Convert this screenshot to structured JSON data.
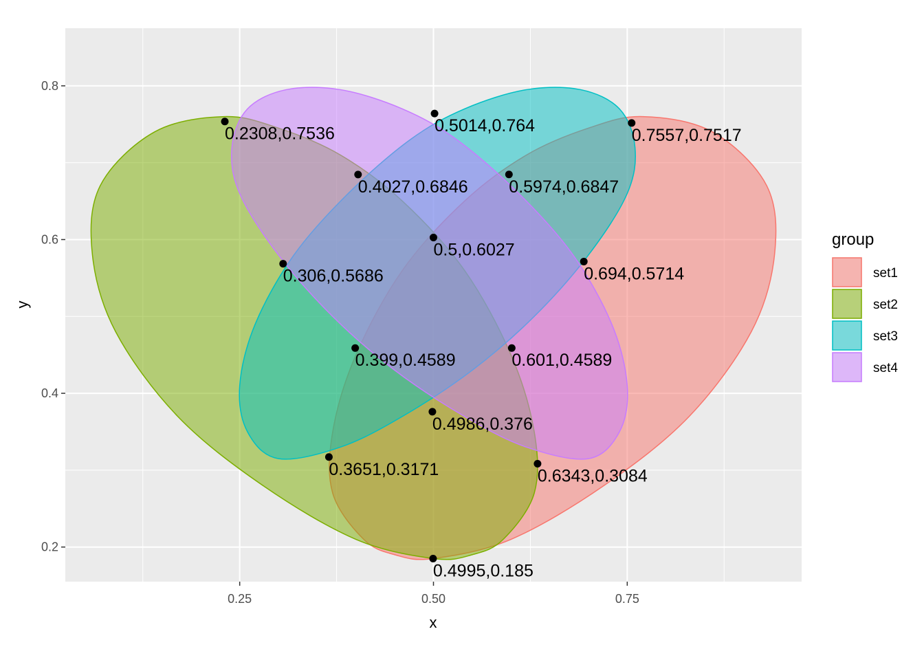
{
  "chart_data": {
    "type": "scatter",
    "title": "",
    "xlabel": "x",
    "ylabel": "y",
    "xlim": [
      0.025,
      0.975
    ],
    "ylim": [
      0.155,
      0.875
    ],
    "x_ticks": [
      0.25,
      0.5,
      0.75
    ],
    "x_tick_labels": [
      "0.25",
      "0.50",
      "0.75"
    ],
    "x_minor_ticks": [
      0.125,
      0.375,
      0.625,
      0.875
    ],
    "y_ticks": [
      0.2,
      0.4,
      0.6,
      0.8
    ],
    "y_tick_labels": [
      "0.2",
      "0.4",
      "0.6",
      "0.8"
    ],
    "y_minor_ticks": [
      0.3,
      0.5,
      0.7
    ],
    "grid": true,
    "panel_background": "#ebebeb",
    "legend": {
      "title": "group",
      "position": "right",
      "entries": [
        {
          "label": "set1",
          "fill": "#F8766D",
          "stroke": "#F8766D"
        },
        {
          "label": "set2",
          "fill": "#7CAE00",
          "stroke": "#7CAE00"
        },
        {
          "label": "set3",
          "fill": "#00BFC4",
          "stroke": "#00BFC4"
        },
        {
          "label": "set4",
          "fill": "#C77CFF",
          "stroke": "#C77CFF"
        }
      ]
    },
    "fill_opacity": 0.5,
    "ellipses": [
      {
        "group": "set1",
        "color": "#F8766D",
        "outline": [
          [
            0.4995,
            0.185
          ],
          [
            0.6,
            0.21
          ],
          [
            0.72,
            0.28
          ],
          [
            0.83,
            0.37
          ],
          [
            0.91,
            0.48
          ],
          [
            0.94,
            0.58
          ],
          [
            0.93,
            0.67
          ],
          [
            0.86,
            0.74
          ],
          [
            0.77,
            0.76
          ],
          [
            0.7,
            0.745
          ],
          [
            0.62,
            0.71
          ],
          [
            0.54,
            0.65
          ],
          [
            0.46,
            0.56
          ],
          [
            0.4,
            0.45
          ],
          [
            0.37,
            0.35
          ],
          [
            0.37,
            0.27
          ],
          [
            0.41,
            0.21
          ],
          [
            0.45,
            0.19
          ]
        ]
      },
      {
        "group": "set2",
        "color": "#7CAE00",
        "outline": [
          [
            0.5005,
            0.185
          ],
          [
            0.55,
            0.19
          ],
          [
            0.59,
            0.21
          ],
          [
            0.63,
            0.27
          ],
          [
            0.63,
            0.35
          ],
          [
            0.6,
            0.45
          ],
          [
            0.54,
            0.56
          ],
          [
            0.46,
            0.65
          ],
          [
            0.38,
            0.71
          ],
          [
            0.3,
            0.745
          ],
          [
            0.23,
            0.76
          ],
          [
            0.14,
            0.74
          ],
          [
            0.07,
            0.67
          ],
          [
            0.06,
            0.58
          ],
          [
            0.09,
            0.48
          ],
          [
            0.17,
            0.37
          ],
          [
            0.28,
            0.28
          ],
          [
            0.4,
            0.21
          ]
        ]
      },
      {
        "group": "set3",
        "color": "#00BFC4",
        "outline": [
          [
            0.3,
            0.315
          ],
          [
            0.38,
            0.33
          ],
          [
            0.46,
            0.37
          ],
          [
            0.55,
            0.43
          ],
          [
            0.63,
            0.5
          ],
          [
            0.7,
            0.58
          ],
          [
            0.75,
            0.66
          ],
          [
            0.76,
            0.72
          ],
          [
            0.74,
            0.77
          ],
          [
            0.69,
            0.795
          ],
          [
            0.62,
            0.795
          ],
          [
            0.54,
            0.77
          ],
          [
            0.47,
            0.73
          ],
          [
            0.39,
            0.66
          ],
          [
            0.32,
            0.58
          ],
          [
            0.27,
            0.49
          ],
          [
            0.25,
            0.41
          ],
          [
            0.26,
            0.35
          ]
        ]
      },
      {
        "group": "set4",
        "color": "#C77CFF",
        "outline": [
          [
            0.7,
            0.315
          ],
          [
            0.74,
            0.35
          ],
          [
            0.75,
            0.41
          ],
          [
            0.73,
            0.49
          ],
          [
            0.68,
            0.58
          ],
          [
            0.61,
            0.66
          ],
          [
            0.53,
            0.73
          ],
          [
            0.46,
            0.77
          ],
          [
            0.38,
            0.795
          ],
          [
            0.31,
            0.795
          ],
          [
            0.26,
            0.77
          ],
          [
            0.24,
            0.72
          ],
          [
            0.25,
            0.66
          ],
          [
            0.3,
            0.58
          ],
          [
            0.37,
            0.5
          ],
          [
            0.45,
            0.43
          ],
          [
            0.54,
            0.37
          ],
          [
            0.62,
            0.33
          ]
        ]
      }
    ],
    "points": [
      {
        "x": 0.2308,
        "y": 0.7536,
        "label": "0.2308,0.7536"
      },
      {
        "x": 0.5014,
        "y": 0.764,
        "label": "0.5014,0.764"
      },
      {
        "x": 0.7557,
        "y": 0.7517,
        "label": "0.7557,0.7517"
      },
      {
        "x": 0.4027,
        "y": 0.6846,
        "label": "0.4027,0.6846"
      },
      {
        "x": 0.5974,
        "y": 0.6847,
        "label": "0.5974,0.6847"
      },
      {
        "x": 0.5,
        "y": 0.6027,
        "label": "0.5,0.6027"
      },
      {
        "x": 0.306,
        "y": 0.5686,
        "label": "0.306,0.5686"
      },
      {
        "x": 0.694,
        "y": 0.5714,
        "label": "0.694,0.5714"
      },
      {
        "x": 0.399,
        "y": 0.4589,
        "label": "0.399,0.4589"
      },
      {
        "x": 0.601,
        "y": 0.4589,
        "label": "0.601,0.4589"
      },
      {
        "x": 0.4986,
        "y": 0.376,
        "label": "0.4986,0.376"
      },
      {
        "x": 0.3651,
        "y": 0.3171,
        "label": "0.3651,0.3171"
      },
      {
        "x": 0.6343,
        "y": 0.3084,
        "label": "0.6343,0.3084"
      },
      {
        "x": 0.4995,
        "y": 0.185,
        "label": "0.4995,0.185"
      }
    ]
  }
}
